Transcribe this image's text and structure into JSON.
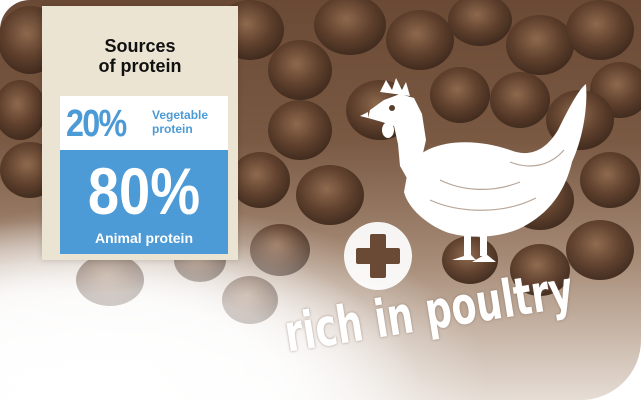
{
  "infographic": {
    "title_line1": "Sources",
    "title_line2": "of protein",
    "vegetable": {
      "percent": "20%",
      "label_line1": "Vegetable",
      "label_line2": "protein"
    },
    "animal": {
      "percent": "80%",
      "label": "Animal protein"
    }
  },
  "tagline": "rich in poultry",
  "icons": [
    "chicken-icon",
    "plus-icon"
  ],
  "colors": {
    "accent_blue": "#4c9ad6",
    "card_beige": "#ece4d3",
    "text_dark": "#111111",
    "white": "#ffffff"
  }
}
